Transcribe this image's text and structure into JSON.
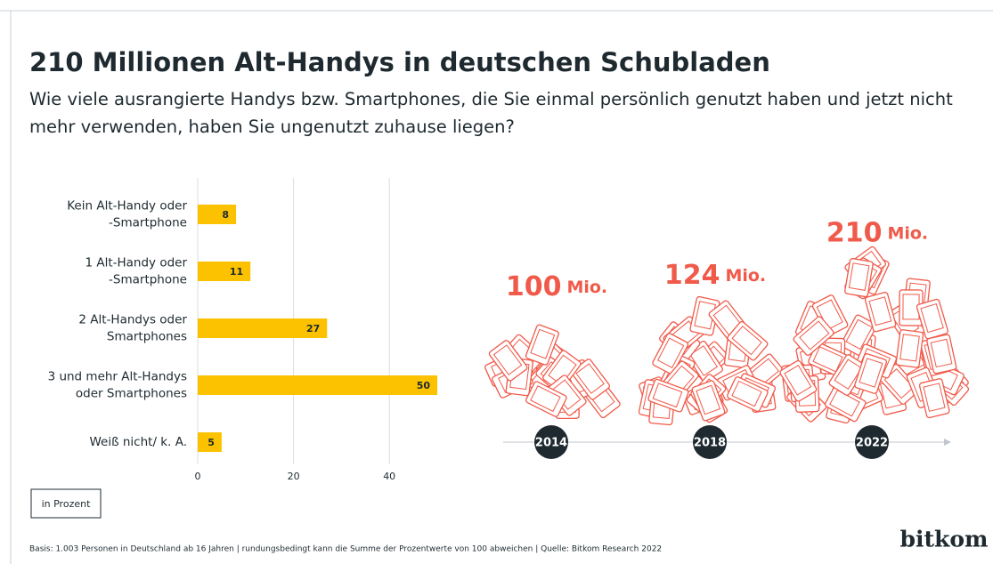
{
  "chart_data": {
    "type": "bar",
    "orientation": "horizontal",
    "title": "210 Millionen Alt-Handys in deutschen Schubladen",
    "subtitle": "Wie viele ausrangierte Handys bzw. Smartphones, die Sie einmal persönlich genutzt haben und jetzt nicht mehr verwenden, haben Sie ungenutzt zuhause liegen?",
    "categories": [
      "Kein Alt-Handy oder\n-Smartphone",
      "1 Alt-Handy oder\n-Smartphone",
      "2 Alt-Handys oder\nSmartphones",
      "3 und mehr Alt-Handys\noder Smartphones",
      "Weiß nicht/ k. A."
    ],
    "values": [
      8,
      11,
      27,
      50,
      5
    ],
    "color": "#fcc200",
    "xlim": [
      0,
      50
    ],
    "xticks": [
      0,
      20,
      40
    ],
    "grid": true,
    "unit_note": "in Prozent"
  },
  "timeline": {
    "years": [
      "2014",
      "2018",
      "2022"
    ],
    "values": [
      100,
      124,
      210
    ],
    "unit": "Mio.",
    "color": "#f05a4a"
  },
  "footnote": "Basis: 1.003 Personen in Deutschland ab 16 Jahren | rundungsbedingt kann die Summe der Prozentwerte von 100 abweichen | Quelle: Bitkom Research 2022",
  "brand": "bitkom"
}
